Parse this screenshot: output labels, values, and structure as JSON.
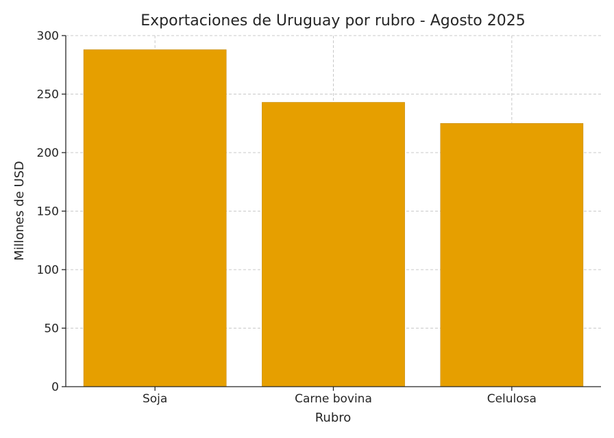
{
  "chart_data": {
    "type": "bar",
    "title": "Exportaciones de Uruguay por rubro - Agosto 2025",
    "xlabel": "Rubro",
    "ylabel": "Millones de USD",
    "categories": [
      "Soja",
      "Carne bovina",
      "Celulosa"
    ],
    "values": [
      288,
      243,
      225
    ],
    "ylim": [
      0,
      300
    ],
    "yticks": [
      0,
      50,
      100,
      150,
      200,
      250,
      300
    ],
    "grid": true,
    "bar_color": "#E69F00"
  }
}
